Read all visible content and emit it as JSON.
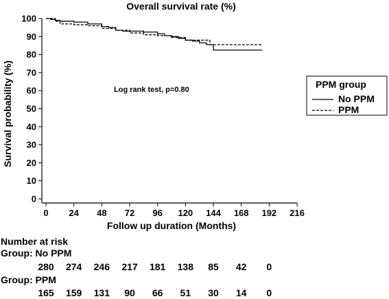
{
  "chart_data": {
    "type": "line",
    "title": "Overall survival rate (%)",
    "xlabel": "Follow up duration (Months)",
    "ylabel": "Survival probability (%)",
    "xlim": [
      0,
      216
    ],
    "ylim": [
      0,
      100
    ],
    "x_ticks": [
      "0",
      "24",
      "48",
      "72",
      "96",
      "120",
      "144",
      "168",
      "192",
      "216"
    ],
    "y_ticks": [
      "0",
      "10",
      "20",
      "30",
      "40",
      "50",
      "60",
      "70",
      "80",
      "90",
      "100"
    ],
    "annotation": "Log rank test, p=0.80",
    "legend": {
      "title": "PPM group",
      "position": "right",
      "entries": [
        "No PPM",
        "PPM"
      ]
    },
    "series": [
      {
        "name": "No PPM",
        "style": "solid",
        "x": [
          0,
          4,
          8,
          12,
          24,
          36,
          48,
          54,
          60,
          66,
          72,
          78,
          84,
          96,
          102,
          108,
          114,
          120,
          126,
          132,
          138,
          144,
          186
        ],
        "y": [
          100,
          99.5,
          99,
          98.5,
          98,
          97,
          95.5,
          95,
          93.5,
          93,
          93,
          93,
          92.5,
          91.5,
          90.5,
          90,
          89,
          88,
          87.5,
          86.5,
          85.5,
          82.5,
          82.5
        ]
      },
      {
        "name": "PPM",
        "style": "dashed",
        "x": [
          0,
          8,
          12,
          24,
          36,
          48,
          60,
          72,
          84,
          96,
          108,
          120,
          132,
          138,
          141,
          186
        ],
        "y": [
          100,
          98.5,
          97,
          96.5,
          96,
          94.5,
          93.5,
          92,
          91,
          90.5,
          89.5,
          88,
          88,
          88,
          85.5,
          85.5
        ]
      }
    ],
    "grid": false
  },
  "number_at_risk": {
    "heading": "Number at risk",
    "groups": [
      {
        "label": "Group: No PPM",
        "values": [
          "280",
          "274",
          "246",
          "217",
          "181",
          "138",
          "85",
          "42",
          "0"
        ]
      },
      {
        "label": "Group: PPM",
        "values": [
          "165",
          "159",
          "131",
          "90",
          "66",
          "51",
          "30",
          "14",
          "0"
        ]
      }
    ]
  }
}
